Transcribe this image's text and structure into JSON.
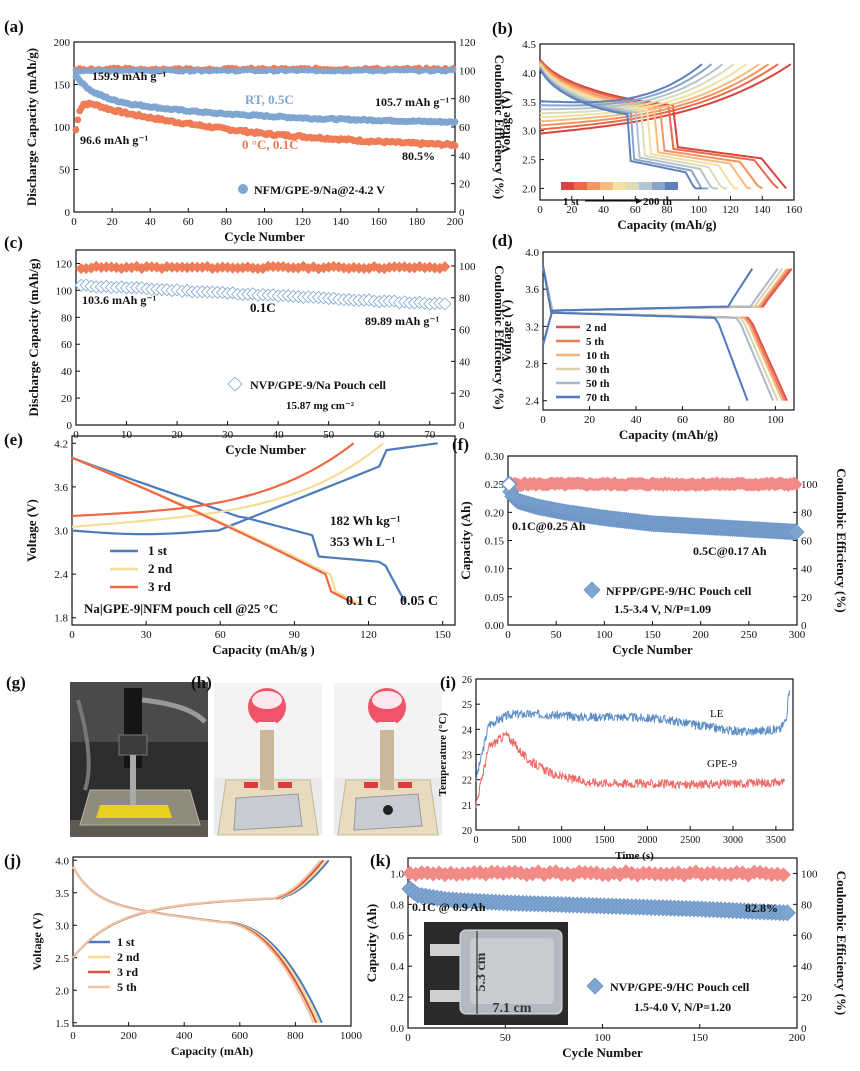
{
  "colors": {
    "blue": "#7ea6d1",
    "blue_dark": "#4e7bbc",
    "orange": "#ee7c57",
    "red": "#e05a58",
    "pink": "#f28b86",
    "gradient": [
      "#d6453e",
      "#ea6b4c",
      "#f39460",
      "#f7bb7e",
      "#f6dfa3",
      "#dcdcb9",
      "#b3c4cf",
      "#8aa4c9",
      "#5f80be"
    ]
  },
  "panels": {
    "a": "(a)",
    "b": "(b)",
    "c": "(c)",
    "d": "(d)",
    "e": "(e)",
    "f": "(f)",
    "g": "(g)",
    "h": "(h)",
    "i": "(i)",
    "j": "(j)",
    "k": "(k)"
  },
  "chart_data": [
    {
      "id": "a",
      "type": "scatter",
      "xlabel": "Cycle Number",
      "ylabel": "Discharge Capacity (mAh/g)",
      "y2label": "Coulombic Efficiency (%)",
      "xlim": [
        0,
        200
      ],
      "ylim": [
        0,
        200
      ],
      "y2lim": [
        0,
        120
      ],
      "xticks": [
        0,
        20,
        40,
        60,
        80,
        100,
        120,
        140,
        160,
        180,
        200
      ],
      "yticks": [
        0,
        50,
        100,
        150,
        200
      ],
      "y2ticks": [
        0,
        20,
        40,
        60,
        80,
        100,
        120
      ],
      "series": [
        {
          "name": "RT, 0.5C",
          "color_key": "blue",
          "axis": "left",
          "x": [
            1,
            5,
            10,
            20,
            30,
            50,
            75,
            100,
            125,
            150,
            175,
            200
          ],
          "y": [
            159.9,
            150,
            141,
            132,
            127,
            121,
            116,
            113,
            110,
            108.5,
            107,
            105.7
          ]
        },
        {
          "name": "0 °C, 0.1C",
          "color_key": "orange",
          "axis": "left",
          "x": [
            1,
            3,
            5,
            10,
            20,
            30,
            50,
            75,
            100,
            125,
            150,
            175,
            200
          ],
          "y": [
            96.6,
            120,
            127,
            127,
            120,
            115,
            107,
            99,
            92,
            88,
            84,
            81,
            79
          ]
        },
        {
          "name": "CE blue",
          "color_key": "blue",
          "axis": "right",
          "x": [
            1,
            200
          ],
          "y": [
            100,
            100
          ]
        },
        {
          "name": "CE orange",
          "color_key": "orange",
          "axis": "right",
          "x": [
            1,
            200
          ],
          "y": [
            101,
            101
          ]
        }
      ],
      "annotations": [
        "159.9 mAh g⁻¹",
        "RT, 0.5C",
        "105.7 mAh g⁻¹",
        "96.6 mAh g⁻¹",
        "0 °C, 0.1C",
        "80.5%"
      ],
      "legend": "NFM/GPE-9/Na@2-4.2 V"
    },
    {
      "id": "b",
      "type": "line",
      "xlabel": "Capacity (mAh/g)",
      "ylabel": "Voltage (V)",
      "xlim": [
        0,
        160
      ],
      "ylim": [
        1.8,
        4.5
      ],
      "xticks": [
        0,
        20,
        40,
        60,
        80,
        100,
        120,
        140,
        160
      ],
      "yticks": [
        2.0,
        2.5,
        3.0,
        3.5,
        4.0,
        4.5
      ],
      "discharge_capacities": [
        155,
        150,
        140,
        133,
        125,
        118,
        112,
        106,
        102
      ],
      "charge_capacities": [
        158,
        150,
        144,
        138,
        130,
        122,
        115,
        108,
        102
      ],
      "legend_labels": [
        "1 st",
        "200 th"
      ]
    },
    {
      "id": "c",
      "type": "scatter",
      "xlabel": "Cycle Number",
      "ylabel": "Discharge Capacity (mAh/g)",
      "y2label": "Coulombic Efficiency (%)",
      "xlim": [
        0,
        75
      ],
      "ylim": [
        0,
        130
      ],
      "y2lim": [
        0,
        110
      ],
      "xticks": [
        0,
        10,
        20,
        30,
        40,
        50,
        60,
        70
      ],
      "yticks": [
        0,
        20,
        40,
        60,
        80,
        100,
        120
      ],
      "y2ticks": [
        0,
        20,
        40,
        60,
        80,
        100
      ],
      "series": [
        {
          "name": "capacity",
          "color_key": "blue",
          "axis": "left",
          "x": [
            1,
            10,
            20,
            30,
            40,
            50,
            60,
            73
          ],
          "y": [
            103.6,
            102,
            100,
            98,
            96,
            94,
            92,
            89.89
          ]
        },
        {
          "name": "CE",
          "color_key": "orange",
          "axis": "right",
          "x": [
            1,
            73
          ],
          "y": [
            99,
            99
          ]
        }
      ],
      "annotations": [
        "103.6 mAh g⁻¹",
        "0.1C",
        "89.89 mAh g⁻¹"
      ],
      "legend": "NVP/GPE-9/Na Pouch cell",
      "note": "15.87 mg cm⁻²"
    },
    {
      "id": "d",
      "type": "line",
      "xlabel": "Capacity (mAh/g)",
      "ylabel": "Voltage (V)",
      "xlim": [
        0,
        108
      ],
      "ylim": [
        2.3,
        4.0
      ],
      "xticks": [
        0,
        20,
        40,
        60,
        80,
        100
      ],
      "yticks": [
        2.4,
        2.8,
        3.2,
        3.6,
        4.0
      ],
      "series": [
        {
          "name": "2 nd",
          "capacity": 105
        },
        {
          "name": "5 th",
          "capacity": 104
        },
        {
          "name": "10 th",
          "capacity": 103
        },
        {
          "name": "30 th",
          "capacity": 101
        },
        {
          "name": "50 th",
          "capacity": 99
        },
        {
          "name": "70 th",
          "capacity": 88
        }
      ]
    },
    {
      "id": "e",
      "type": "line",
      "xlabel": "Capacity (mAh/g )",
      "ylabel": "Voltage (V)",
      "xlim": [
        0,
        155
      ],
      "ylim": [
        1.7,
        4.3
      ],
      "xticks": [
        0,
        30,
        60,
        90,
        120,
        150
      ],
      "yticks": [
        1.8,
        2.4,
        3.0,
        3.6,
        4.2
      ],
      "series": [
        {
          "name": "1 st",
          "charge_end": 148,
          "discharge_end": 135
        },
        {
          "name": "2 nd",
          "charge_end": 126,
          "discharge_end": 116
        },
        {
          "name": "3 rd",
          "charge_end": 114,
          "discharge_end": 114
        }
      ],
      "annotations": [
        "182 Wh kg⁻¹",
        "353 Wh L⁻¹",
        "0.1 C",
        "0.05 C"
      ],
      "note": "Na|GPE-9|NFM pouch cell @25 °C"
    },
    {
      "id": "f",
      "type": "scatter",
      "xlabel": "Cycle Number",
      "ylabel": "Capacity (Ah)",
      "y2label": "Coulombic Efficiency (%)",
      "xlim": [
        0,
        300
      ],
      "ylim": [
        0,
        0.3
      ],
      "y2lim": [
        0,
        120
      ],
      "xticks": [
        0,
        50,
        100,
        150,
        200,
        250,
        300
      ],
      "yticks": [
        0.0,
        0.05,
        0.1,
        0.15,
        0.2,
        0.25,
        0.3
      ],
      "y2ticks": [
        0,
        20,
        40,
        60,
        80,
        100
      ],
      "series": [
        {
          "name": "capacity",
          "color_key": "blue",
          "axis": "left",
          "x": [
            1,
            4,
            10,
            30,
            60,
            100,
            150,
            200,
            250,
            300
          ],
          "y": [
            0.25,
            0.23,
            0.22,
            0.21,
            0.2,
            0.19,
            0.18,
            0.175,
            0.17,
            0.165
          ]
        },
        {
          "name": "CE",
          "color_key": "red",
          "axis": "right",
          "x": [
            1,
            300
          ],
          "y": [
            100,
            100
          ]
        }
      ],
      "annotations": [
        "0.1C@0.25 Ah",
        "0.5C@0.17 Ah"
      ],
      "legend": "NFPP/GPE-9/HC Pouch cell",
      "note": "1.5-3.4 V, N/P=1.09"
    },
    {
      "id": "i",
      "type": "line",
      "xlabel": "Time (s)",
      "ylabel": "Temperature (°C)",
      "xlim": [
        0,
        3700
      ],
      "ylim": [
        20,
        26
      ],
      "xticks": [
        0,
        500,
        1000,
        1500,
        2000,
        2500,
        3000,
        3500
      ],
      "yticks": [
        20,
        21,
        22,
        23,
        24,
        25,
        26
      ],
      "series": [
        {
          "name": "LE",
          "x": [
            0,
            150,
            400,
            800,
            1200,
            1700,
            2200,
            2700,
            3100,
            3550,
            3620,
            3660
          ],
          "y": [
            22,
            24.2,
            24.6,
            24.6,
            24.5,
            24.5,
            24.4,
            24.1,
            23.9,
            24.0,
            24.4,
            25.7
          ]
        },
        {
          "name": "GPE-9",
          "x": [
            0,
            150,
            350,
            600,
            900,
            1300,
            1800,
            2500,
            3000,
            3600
          ],
          "y": [
            21,
            23.3,
            23.8,
            22.8,
            22.2,
            21.9,
            21.85,
            21.8,
            21.85,
            21.9
          ]
        }
      ],
      "labels": [
        "LE",
        "GPE-9"
      ]
    },
    {
      "id": "j",
      "type": "line",
      "xlabel": "Capacity (mAh)",
      "ylabel": "Voltage (V)",
      "xlim": [
        0,
        1000
      ],
      "ylim": [
        1.45,
        4.05
      ],
      "xticks": [
        0,
        200,
        400,
        600,
        800,
        1000
      ],
      "yticks": [
        1.5,
        2.0,
        2.5,
        3.0,
        3.5,
        4.0
      ],
      "series": [
        {
          "name": "1 st",
          "capacity": 895
        },
        {
          "name": "2 nd",
          "capacity": 885
        },
        {
          "name": "3 rd",
          "capacity": 875
        },
        {
          "name": "5 th",
          "capacity": 865
        }
      ]
    },
    {
      "id": "k",
      "type": "scatter",
      "xlabel": "Cycle Number",
      "ylabel": "Capacity (Ah)",
      "y2label": "Coulombic Efficiency (%)",
      "xlim": [
        0,
        200
      ],
      "ylim": [
        0,
        1.1
      ],
      "y2lim": [
        0,
        110
      ],
      "xticks": [
        0,
        50,
        100,
        150,
        200
      ],
      "yticks": [
        0.0,
        0.2,
        0.4,
        0.6,
        0.8,
        1.0
      ],
      "y2ticks": [
        0,
        20,
        40,
        60,
        80,
        100
      ],
      "series": [
        {
          "name": "capacity",
          "color_key": "blue",
          "axis": "left",
          "x": [
            1,
            5,
            20,
            50,
            100,
            150,
            195
          ],
          "y": [
            0.9,
            0.86,
            0.83,
            0.81,
            0.79,
            0.77,
            0.745
          ]
        },
        {
          "name": "CE",
          "color_key": "red",
          "axis": "right",
          "x": [
            1,
            195
          ],
          "y": [
            100,
            100
          ]
        }
      ],
      "annotations": [
        "0.1C @ 0.9 Ah",
        "82.8%",
        "5.3 cm",
        "7.1 cm"
      ],
      "legend": "NVP/GPE-9/HC Pouch cell",
      "note": "1.5-4.0 V, N/P=1.20"
    }
  ]
}
